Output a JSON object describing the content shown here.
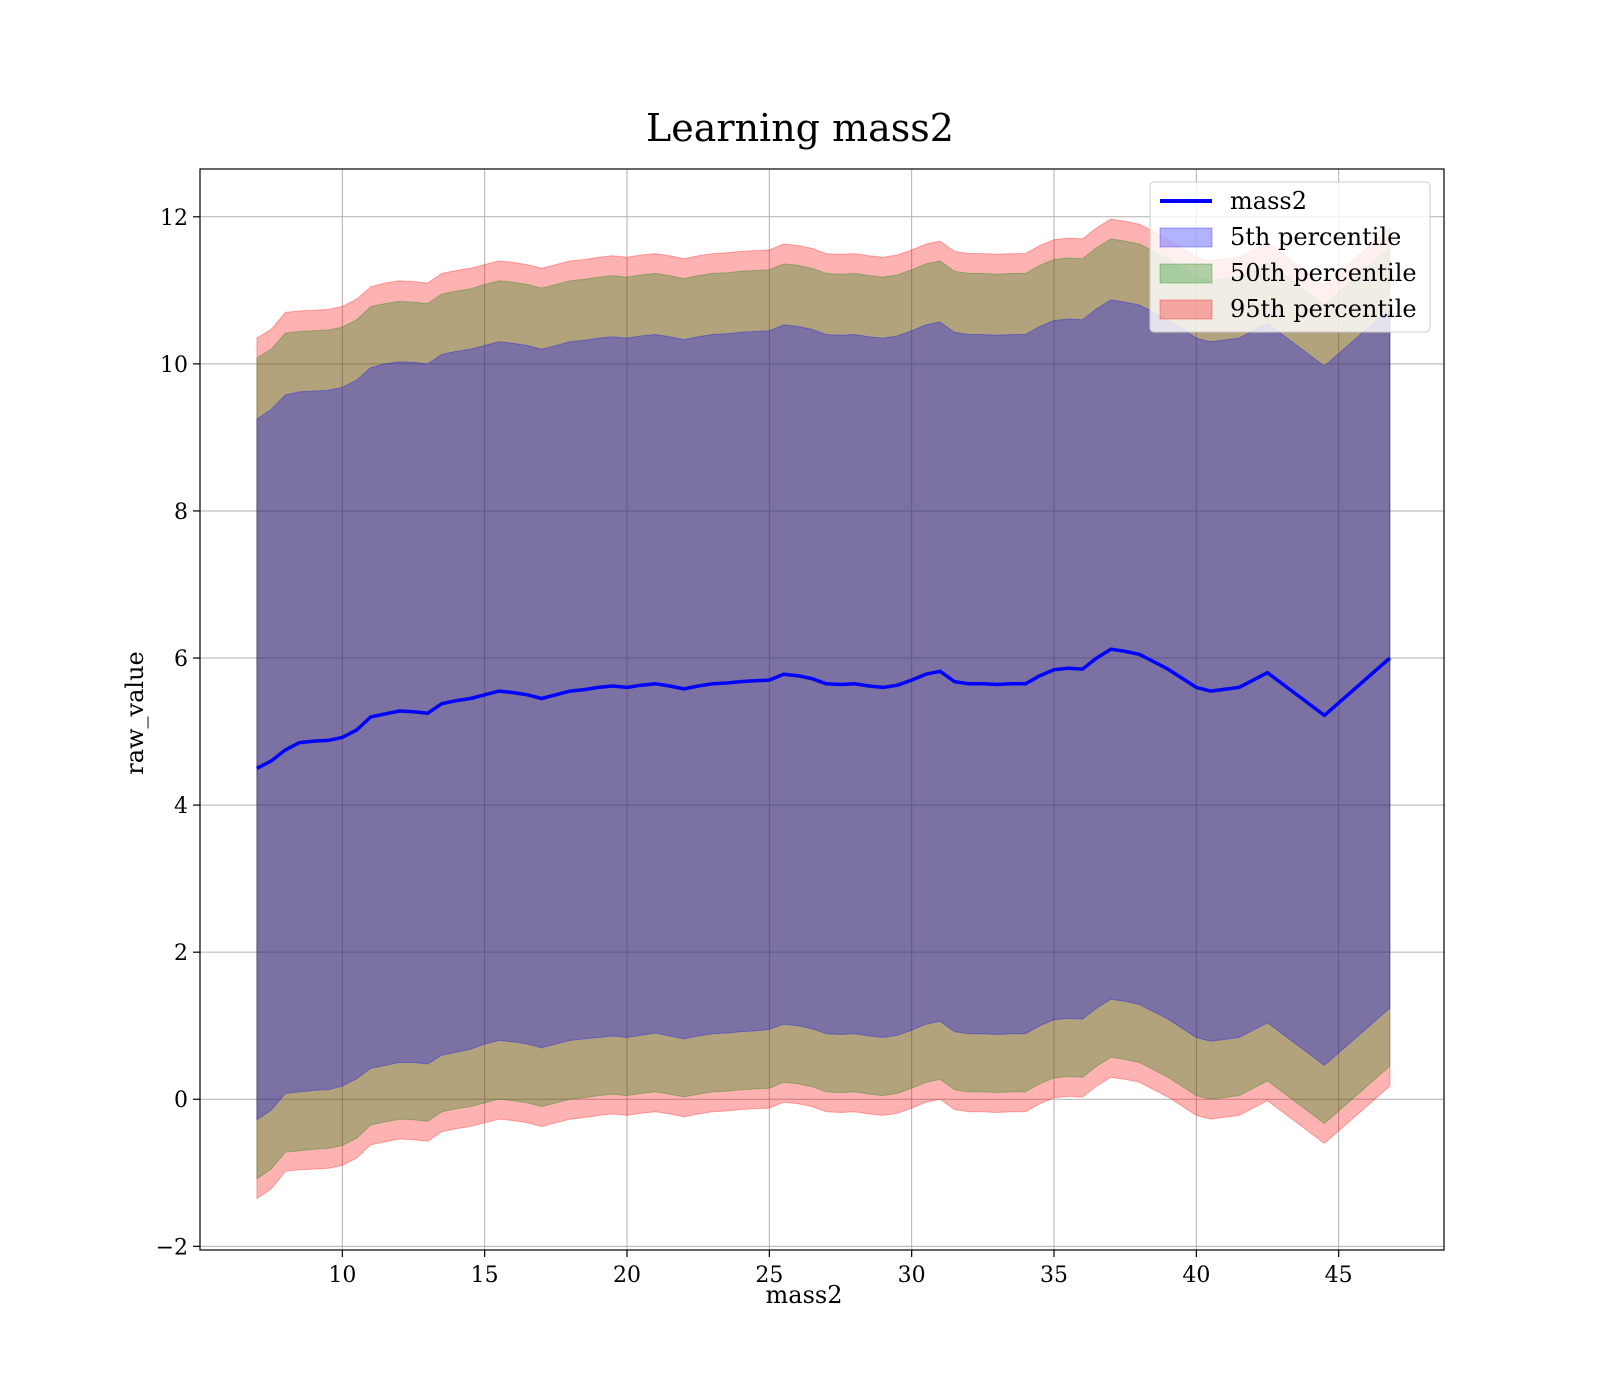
{
  "chart_data": {
    "type": "area",
    "title": "Learning mass2",
    "xlabel": "mass2",
    "ylabel": "raw_value",
    "xlim": [
      5.0,
      48.7
    ],
    "ylim": [
      -2.05,
      12.65
    ],
    "xticks": [
      10,
      15,
      20,
      25,
      30,
      35,
      40,
      45
    ],
    "yticks": [
      -2,
      0,
      2,
      4,
      6,
      8,
      10,
      12
    ],
    "xtick_labels": [
      "10",
      "15",
      "20",
      "25",
      "30",
      "35",
      "40",
      "45"
    ],
    "ytick_labels": [
      "−2",
      "0",
      "2",
      "4",
      "6",
      "8",
      "10",
      "12"
    ],
    "grid": true,
    "legend_position": "top-right",
    "legend": [
      {
        "label": "mass2",
        "kind": "line",
        "color": "#0000ff"
      },
      {
        "label": "5th percentile",
        "kind": "patch",
        "color": "#0000ff"
      },
      {
        "label": "50th percentile",
        "kind": "patch",
        "color": "#008000"
      },
      {
        "label": "95th percentile",
        "kind": "patch",
        "color": "#ff0000"
      }
    ],
    "x": [
      7.0,
      7.5,
      8.0,
      8.5,
      9.0,
      9.5,
      10.0,
      10.5,
      11.0,
      11.5,
      12.0,
      12.5,
      13.0,
      13.5,
      14.0,
      14.5,
      15.0,
      15.5,
      16.0,
      16.5,
      17.0,
      17.5,
      18.0,
      18.5,
      19.0,
      19.5,
      20.0,
      20.5,
      21.0,
      21.5,
      22.0,
      22.5,
      23.0,
      23.5,
      24.0,
      24.5,
      25.0,
      25.5,
      26.0,
      26.5,
      27.0,
      27.5,
      28.0,
      28.5,
      29.0,
      29.5,
      30.0,
      30.5,
      31.0,
      31.5,
      32.0,
      32.5,
      33.0,
      33.5,
      34.0,
      34.5,
      35.0,
      35.5,
      36.0,
      36.5,
      37.0,
      37.5,
      38.0,
      39.0,
      40.0,
      40.5,
      41.5,
      42.5,
      44.5,
      46.8
    ],
    "series": [
      {
        "name": "mass2",
        "role": "line",
        "color": "#0000ff",
        "values": [
          4.5,
          4.6,
          4.75,
          4.85,
          4.87,
          4.88,
          4.92,
          5.02,
          5.2,
          5.24,
          5.28,
          5.27,
          5.25,
          5.38,
          5.42,
          5.45,
          5.5,
          5.55,
          5.53,
          5.5,
          5.45,
          5.5,
          5.55,
          5.57,
          5.6,
          5.62,
          5.6,
          5.63,
          5.65,
          5.62,
          5.58,
          5.62,
          5.65,
          5.66,
          5.68,
          5.69,
          5.7,
          5.78,
          5.76,
          5.72,
          5.65,
          5.64,
          5.65,
          5.62,
          5.6,
          5.63,
          5.7,
          5.78,
          5.82,
          5.68,
          5.65,
          5.65,
          5.64,
          5.65,
          5.65,
          5.76,
          5.84,
          5.86,
          5.85,
          6.0,
          6.12,
          6.09,
          6.05,
          5.85,
          5.6,
          5.55,
          5.6,
          5.8,
          5.22,
          6.0
        ]
      },
      {
        "name": "5th percentile",
        "role": "band",
        "color": "#0000ff",
        "lower": [
          -0.28,
          -0.15,
          0.08,
          0.1,
          0.12,
          0.13,
          0.18,
          0.28,
          0.42,
          0.46,
          0.5,
          0.5,
          0.48,
          0.6,
          0.64,
          0.68,
          0.75,
          0.8,
          0.78,
          0.75,
          0.7,
          0.75,
          0.8,
          0.82,
          0.84,
          0.86,
          0.84,
          0.87,
          0.9,
          0.86,
          0.82,
          0.86,
          0.89,
          0.9,
          0.92,
          0.93,
          0.95,
          1.02,
          1.0,
          0.96,
          0.89,
          0.88,
          0.89,
          0.86,
          0.84,
          0.87,
          0.94,
          1.02,
          1.06,
          0.92,
          0.89,
          0.89,
          0.88,
          0.89,
          0.89,
          1.0,
          1.08,
          1.1,
          1.09,
          1.24,
          1.36,
          1.33,
          1.29,
          1.09,
          0.84,
          0.79,
          0.84,
          1.04,
          0.46,
          1.24
        ],
        "upper": [
          9.25,
          9.38,
          9.58,
          9.62,
          9.63,
          9.64,
          9.68,
          9.78,
          9.95,
          10.0,
          10.03,
          10.02,
          10.0,
          10.13,
          10.17,
          10.2,
          10.25,
          10.3,
          10.28,
          10.25,
          10.2,
          10.25,
          10.3,
          10.32,
          10.35,
          10.37,
          10.35,
          10.38,
          10.4,
          10.37,
          10.33,
          10.37,
          10.4,
          10.41,
          10.43,
          10.44,
          10.45,
          10.53,
          10.51,
          10.47,
          10.4,
          10.39,
          10.4,
          10.37,
          10.35,
          10.38,
          10.45,
          10.53,
          10.57,
          10.43,
          10.4,
          10.4,
          10.39,
          10.4,
          10.4,
          10.51,
          10.59,
          10.61,
          10.6,
          10.75,
          10.87,
          10.84,
          10.8,
          10.6,
          10.35,
          10.3,
          10.35,
          10.55,
          9.97,
          10.75
        ]
      },
      {
        "name": "50th percentile",
        "role": "band",
        "color": "#008000",
        "lower": [
          -1.08,
          -0.95,
          -0.72,
          -0.7,
          -0.68,
          -0.67,
          -0.63,
          -0.53,
          -0.35,
          -0.31,
          -0.27,
          -0.28,
          -0.3,
          -0.17,
          -0.13,
          -0.1,
          -0.05,
          0.0,
          -0.02,
          -0.05,
          -0.1,
          -0.05,
          0.0,
          0.02,
          0.05,
          0.07,
          0.05,
          0.08,
          0.1,
          0.07,
          0.03,
          0.07,
          0.1,
          0.11,
          0.13,
          0.14,
          0.15,
          0.23,
          0.21,
          0.17,
          0.1,
          0.09,
          0.1,
          0.07,
          0.05,
          0.08,
          0.15,
          0.23,
          0.27,
          0.13,
          0.1,
          0.1,
          0.09,
          0.1,
          0.1,
          0.21,
          0.29,
          0.31,
          0.3,
          0.45,
          0.57,
          0.54,
          0.5,
          0.3,
          0.05,
          0.0,
          0.05,
          0.25,
          -0.33,
          0.45
        ],
        "upper": [
          10.08,
          10.2,
          10.42,
          10.44,
          10.45,
          10.46,
          10.5,
          10.6,
          10.78,
          10.82,
          10.85,
          10.84,
          10.82,
          10.95,
          10.99,
          11.02,
          11.08,
          11.13,
          11.11,
          11.08,
          11.03,
          11.08,
          11.13,
          11.15,
          11.18,
          11.2,
          11.18,
          11.21,
          11.23,
          11.2,
          11.16,
          11.2,
          11.23,
          11.24,
          11.26,
          11.27,
          11.28,
          11.36,
          11.34,
          11.3,
          11.23,
          11.22,
          11.23,
          11.2,
          11.18,
          11.21,
          11.28,
          11.36,
          11.4,
          11.26,
          11.23,
          11.23,
          11.22,
          11.23,
          11.23,
          11.34,
          11.42,
          11.44,
          11.43,
          11.58,
          11.7,
          11.67,
          11.63,
          11.43,
          11.18,
          11.13,
          11.18,
          11.38,
          10.8,
          11.58
        ]
      },
      {
        "name": "95th percentile",
        "role": "band",
        "color": "#ff0000",
        "lower": [
          -1.35,
          -1.22,
          -0.98,
          -0.96,
          -0.95,
          -0.94,
          -0.9,
          -0.8,
          -0.62,
          -0.58,
          -0.54,
          -0.55,
          -0.57,
          -0.44,
          -0.4,
          -0.37,
          -0.32,
          -0.27,
          -0.29,
          -0.32,
          -0.37,
          -0.32,
          -0.27,
          -0.25,
          -0.22,
          -0.2,
          -0.22,
          -0.19,
          -0.17,
          -0.2,
          -0.24,
          -0.2,
          -0.17,
          -0.16,
          -0.14,
          -0.13,
          -0.12,
          -0.04,
          -0.06,
          -0.1,
          -0.17,
          -0.18,
          -0.17,
          -0.2,
          -0.22,
          -0.19,
          -0.12,
          -0.04,
          0.0,
          -0.14,
          -0.17,
          -0.17,
          -0.18,
          -0.17,
          -0.17,
          -0.06,
          0.02,
          0.04,
          0.03,
          0.18,
          0.3,
          0.27,
          0.23,
          0.03,
          -0.22,
          -0.27,
          -0.22,
          -0.02,
          -0.6,
          0.18
        ],
        "upper": [
          10.35,
          10.47,
          10.7,
          10.72,
          10.73,
          10.74,
          10.78,
          10.88,
          11.05,
          11.1,
          11.13,
          11.12,
          11.1,
          11.23,
          11.27,
          11.3,
          11.35,
          11.4,
          11.38,
          11.35,
          11.3,
          11.35,
          11.4,
          11.42,
          11.45,
          11.47,
          11.45,
          11.48,
          11.5,
          11.47,
          11.43,
          11.47,
          11.5,
          11.51,
          11.53,
          11.54,
          11.55,
          11.63,
          11.61,
          11.57,
          11.5,
          11.49,
          11.5,
          11.47,
          11.45,
          11.48,
          11.55,
          11.63,
          11.67,
          11.53,
          11.5,
          11.5,
          11.49,
          11.5,
          11.5,
          11.61,
          11.69,
          11.71,
          11.7,
          11.85,
          11.97,
          11.94,
          11.9,
          11.7,
          11.45,
          11.4,
          11.45,
          11.65,
          11.07,
          11.85
        ]
      }
    ]
  }
}
